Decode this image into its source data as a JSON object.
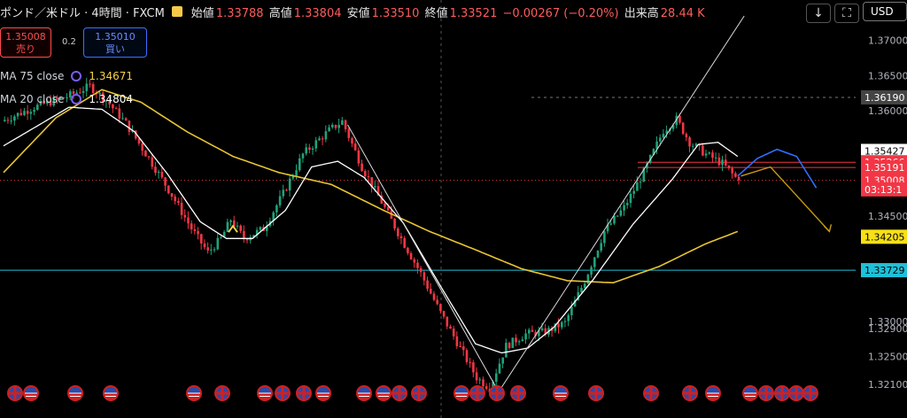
{
  "header": {
    "symbol": "ポンド／米ドル · 4時間 · FXCM",
    "open_label": "始値",
    "open": "1.33788",
    "high_label": "高値",
    "high": "1.33804",
    "low_label": "安値",
    "low": "1.33510",
    "close_label": "終値",
    "close": "1.33521",
    "change": "−0.00267 (−0.20%)",
    "volume_label": "出来高",
    "volume": "28.44 K"
  },
  "toolbar": {
    "down_icon": "↓",
    "expand_icon": "⛶",
    "currency": "USD"
  },
  "trade": {
    "sell_price": "1.35008",
    "sell_label": "売り",
    "spread": "0.2",
    "buy_price": "1.35010",
    "buy_label": "買い"
  },
  "indicators": [
    {
      "name": "MA 75 close",
      "value": "1.34671"
    },
    {
      "name": "MA 20 close",
      "value": "1.34804"
    }
  ],
  "colors": {
    "up": "#1fa37a",
    "down": "#f23645",
    "ma75": "#e8c531",
    "ma20": "#ffffff",
    "hline": "#1ec1d9",
    "proj_blue": "#2f6fff",
    "proj_yellow": "#c99a12"
  },
  "chart_data": {
    "type": "candlestick",
    "price_axis": {
      "ticks": [
        "1.37000",
        "1.36500",
        "1.36000",
        "1.34500",
        "1.33000",
        "1.32900",
        "1.32500",
        "1.32100"
      ],
      "ylim": [
        1.318,
        1.3735
      ]
    },
    "axis_badges": [
      {
        "label": "1.36190",
        "value": 1.3619,
        "style": "gray"
      },
      {
        "label": "1.35427",
        "value": 1.35427,
        "style": "white"
      },
      {
        "label": "1.35266",
        "value": 1.35266,
        "style": "red"
      },
      {
        "label": "1.35191",
        "value": 1.35191,
        "style": "red"
      },
      {
        "label": "1.35008",
        "value": 1.35008,
        "style": "red"
      },
      {
        "label": "03:13:1",
        "value": 1.3488,
        "style": "red"
      },
      {
        "label": "1.34205",
        "value": 1.34205,
        "style": "yellow"
      },
      {
        "label": "1.33729",
        "value": 1.33729,
        "style": "cyan"
      }
    ],
    "horizontal_lines": [
      {
        "value": 1.33729,
        "color": "cyan"
      },
      {
        "value": 1.3619,
        "color": "gray-dashed"
      },
      {
        "value": 1.35266,
        "color": "red"
      },
      {
        "value": 1.35191,
        "color": "red"
      },
      {
        "value": 1.35008,
        "color": "red-dotted"
      }
    ],
    "price_path": [
      [
        0,
        1.3585
      ],
      [
        10,
        1.3605
      ],
      [
        20,
        1.362
      ],
      [
        27,
        1.3635
      ],
      [
        32,
        1.3615
      ],
      [
        38,
        1.3582
      ],
      [
        46,
        1.3525
      ],
      [
        52,
        1.348
      ],
      [
        58,
        1.3432
      ],
      [
        63,
        1.3398
      ],
      [
        67,
        1.3418
      ],
      [
        70,
        1.3445
      ],
      [
        74,
        1.3418
      ],
      [
        80,
        1.3432
      ],
      [
        86,
        1.3482
      ],
      [
        92,
        1.3538
      ],
      [
        100,
        1.3572
      ],
      [
        104,
        1.3585
      ],
      [
        110,
        1.352
      ],
      [
        116,
        1.347
      ],
      [
        122,
        1.3418
      ],
      [
        128,
        1.3368
      ],
      [
        134,
        1.3312
      ],
      [
        140,
        1.3262
      ],
      [
        145,
        1.322
      ],
      [
        149,
        1.3205
      ],
      [
        154,
        1.3265
      ],
      [
        160,
        1.3282
      ],
      [
        166,
        1.3285
      ],
      [
        172,
        1.3298
      ],
      [
        178,
        1.3358
      ],
      [
        184,
        1.3428
      ],
      [
        190,
        1.3462
      ],
      [
        196,
        1.3512
      ],
      [
        202,
        1.3572
      ],
      [
        206,
        1.3588
      ],
      [
        210,
        1.3555
      ],
      [
        215,
        1.3538
      ],
      [
        220,
        1.3525
      ],
      [
        224,
        1.3505
      ]
    ],
    "ma20": [
      [
        0,
        1.355
      ],
      [
        20,
        1.3605
      ],
      [
        30,
        1.3602
      ],
      [
        40,
        1.357
      ],
      [
        50,
        1.351
      ],
      [
        60,
        1.3442
      ],
      [
        68,
        1.3418
      ],
      [
        76,
        1.3418
      ],
      [
        86,
        1.3458
      ],
      [
        94,
        1.352
      ],
      [
        102,
        1.3528
      ],
      [
        110,
        1.3505
      ],
      [
        122,
        1.344
      ],
      [
        134,
        1.3345
      ],
      [
        144,
        1.3268
      ],
      [
        152,
        1.3255
      ],
      [
        160,
        1.3262
      ],
      [
        168,
        1.3292
      ],
      [
        180,
        1.336
      ],
      [
        192,
        1.3438
      ],
      [
        204,
        1.3502
      ],
      [
        212,
        1.3552
      ],
      [
        218,
        1.3555
      ],
      [
        224,
        1.3535
      ]
    ],
    "ma75": [
      [
        0,
        1.3512
      ],
      [
        16,
        1.359
      ],
      [
        30,
        1.363
      ],
      [
        42,
        1.3612
      ],
      [
        56,
        1.357
      ],
      [
        70,
        1.3535
      ],
      [
        84,
        1.3512
      ],
      [
        100,
        1.3495
      ],
      [
        116,
        1.3458
      ],
      [
        130,
        1.3428
      ],
      [
        144,
        1.3402
      ],
      [
        158,
        1.3375
      ],
      [
        172,
        1.3358
      ],
      [
        186,
        1.3355
      ],
      [
        200,
        1.3378
      ],
      [
        214,
        1.341
      ],
      [
        224,
        1.3428
      ]
    ],
    "drawings": {
      "white_lines": [
        {
          "from": [
            105,
            1.358
          ],
          "to": [
            152,
            1.3192
          ]
        },
        {
          "from": [
            150,
            1.3192
          ],
          "to": [
            226,
            1.3735
          ]
        }
      ],
      "yellow_marker": {
        "x": 70,
        "value": 1.3432
      },
      "blue_projection": [
        [
          224,
          1.3507
        ],
        [
          230,
          1.3532
        ],
        [
          236,
          1.3545
        ],
        [
          242,
          1.3535
        ],
        [
          248,
          1.349
        ]
      ],
      "yellow_projection": [
        [
          225,
          1.3507
        ],
        [
          234,
          1.352
        ],
        [
          252,
          1.3428
        ]
      ]
    }
  },
  "event_flags": [
    {
      "x": 8,
      "country": "uk"
    },
    {
      "x": 26,
      "country": "us"
    },
    {
      "x": 76,
      "country": "us"
    },
    {
      "x": 116,
      "country": "us"
    },
    {
      "x": 210,
      "country": "us"
    },
    {
      "x": 242,
      "country": "uk"
    },
    {
      "x": 290,
      "country": "us"
    },
    {
      "x": 310,
      "country": "uk"
    },
    {
      "x": 334,
      "country": "uk"
    },
    {
      "x": 356,
      "country": "us"
    },
    {
      "x": 402,
      "country": "us"
    },
    {
      "x": 424,
      "country": "us"
    },
    {
      "x": 442,
      "country": "uk"
    },
    {
      "x": 464,
      "country": "uk"
    },
    {
      "x": 512,
      "country": "us"
    },
    {
      "x": 530,
      "country": "uk"
    },
    {
      "x": 552,
      "country": "uk"
    },
    {
      "x": 576,
      "country": "uk"
    },
    {
      "x": 624,
      "country": "us"
    },
    {
      "x": 664,
      "country": "uk"
    },
    {
      "x": 726,
      "country": "uk"
    },
    {
      "x": 770,
      "country": "uk"
    },
    {
      "x": 796,
      "country": "us"
    },
    {
      "x": 838,
      "country": "us"
    },
    {
      "x": 856,
      "country": "uk"
    },
    {
      "x": 874,
      "country": "uk"
    },
    {
      "x": 890,
      "country": "uk"
    },
    {
      "x": 906,
      "country": "uk"
    }
  ]
}
